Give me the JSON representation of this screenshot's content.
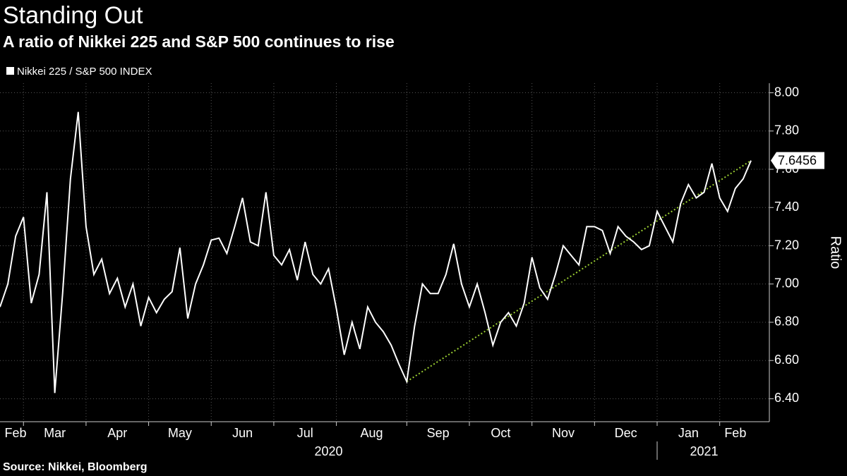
{
  "chart_data": {
    "type": "line",
    "title": "Standing Out",
    "subtitle": "A ratio of Nikkei 225 and S&P 500 continues to rise",
    "source": "Source: Nikkei, Bloomberg",
    "y_axis_label": "Ratio",
    "categories": [
      "Feb",
      null,
      null,
      "Mar",
      null,
      null,
      null,
      null,
      null,
      null,
      null,
      "Apr",
      null,
      null,
      null,
      null,
      null,
      null,
      null,
      "May",
      null,
      null,
      null,
      null,
      null,
      null,
      null,
      "Jun",
      null,
      null,
      null,
      null,
      null,
      null,
      null,
      "Jul",
      null,
      null,
      null,
      null,
      null,
      null,
      null,
      "Aug",
      null,
      null,
      null,
      null,
      null,
      null,
      null,
      null,
      "Sep",
      null,
      null,
      null,
      null,
      null,
      null,
      null,
      "Oct",
      null,
      null,
      null,
      null,
      null,
      null,
      null,
      "Nov",
      null,
      null,
      null,
      null,
      null,
      null,
      null,
      "Dec",
      null,
      null,
      null,
      null,
      null,
      null,
      null,
      "Jan",
      null,
      null,
      null,
      null,
      null,
      null,
      null,
      "Feb",
      null,
      null,
      null,
      null
    ],
    "x_groups": [
      {
        "label": "2020",
        "start": 0
      },
      {
        "label": "2021",
        "start": 84
      }
    ],
    "series": [
      {
        "name": "Nikkei 225 / S&P 500 INDEX",
        "color": "#ffffff",
        "values": [
          6.88,
          7.0,
          7.25,
          7.35,
          6.9,
          7.05,
          7.48,
          6.43,
          6.95,
          7.55,
          7.9,
          7.3,
          7.05,
          7.13,
          6.95,
          7.03,
          6.88,
          7.0,
          6.78,
          6.93,
          6.85,
          6.92,
          6.96,
          7.19,
          6.82,
          7.0,
          7.1,
          7.23,
          7.24,
          7.16,
          7.3,
          7.45,
          7.22,
          7.2,
          7.48,
          7.15,
          7.1,
          7.18,
          7.02,
          7.22,
          7.05,
          7.0,
          7.08,
          6.87,
          6.63,
          6.8,
          6.66,
          6.88,
          6.8,
          6.75,
          6.68,
          6.58,
          6.49,
          6.78,
          7.0,
          6.95,
          6.95,
          7.05,
          7.21,
          7.0,
          6.88,
          7.0,
          6.85,
          6.68,
          6.8,
          6.85,
          6.78,
          6.9,
          7.14,
          6.98,
          6.92,
          7.05,
          7.2,
          7.15,
          7.1,
          7.3,
          7.3,
          7.28,
          7.16,
          7.3,
          7.25,
          7.22,
          7.18,
          7.2,
          7.38,
          7.3,
          7.22,
          7.42,
          7.52,
          7.45,
          7.48,
          7.63,
          7.45,
          7.38,
          7.5,
          7.55,
          7.6456
        ]
      }
    ],
    "trend_line": {
      "from": 52,
      "to": 96,
      "color": "#9acd32"
    },
    "ylim": [
      6.28,
      8.05
    ],
    "yticks": [
      {
        "value": 6.4,
        "label": "6.40"
      },
      {
        "value": 6.6,
        "label": "6.60"
      },
      {
        "value": 6.8,
        "label": "6.80"
      },
      {
        "value": 7.0,
        "label": "7.00"
      },
      {
        "value": 7.2,
        "label": "7.20"
      },
      {
        "value": 7.4,
        "label": "7.40"
      },
      {
        "value": 7.6,
        "label": "7.60"
      },
      {
        "value": 7.8,
        "label": "7.80"
      },
      {
        "value": 8.0,
        "label": "8.00"
      }
    ],
    "grid": true
  }
}
